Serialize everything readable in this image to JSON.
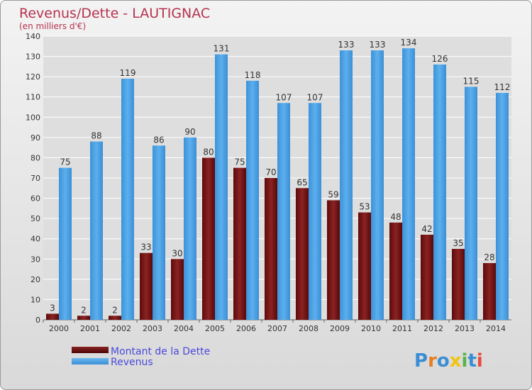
{
  "chart_data": {
    "type": "bar",
    "title": "Revenus/Dette - LAUTIGNAC",
    "subtitle": "(en milliers d'€)",
    "categories": [
      "2000",
      "2001",
      "2002",
      "2003",
      "2004",
      "2005",
      "2006",
      "2007",
      "2008",
      "2009",
      "2010",
      "2011",
      "2012",
      "2013",
      "2014"
    ],
    "series": [
      {
        "name": "Montant de la Dette",
        "color": "#7a1010",
        "values": [
          3,
          2,
          2,
          33,
          30,
          80,
          75,
          70,
          65,
          59,
          53,
          48,
          42,
          35,
          28
        ]
      },
      {
        "name": "Revenus",
        "color": "#4da3e6",
        "values": [
          75,
          88,
          119,
          86,
          90,
          131,
          118,
          107,
          107,
          133,
          133,
          134,
          126,
          115,
          112
        ]
      }
    ],
    "y_ticks": [
      "0",
      "10",
      "20",
      "30",
      "40",
      "50",
      "60",
      "70",
      "80",
      "90",
      "100",
      "110",
      "120",
      "130",
      "140"
    ],
    "ylim": [
      0,
      140
    ],
    "grid": true,
    "legend_position": "bottom-left"
  },
  "branding": {
    "logo_text": "Proxiti"
  },
  "colors": {
    "title": "#b5334f",
    "legend_text": "#4a4adb",
    "grid": "#ffffff",
    "axis_text": "#333333"
  }
}
